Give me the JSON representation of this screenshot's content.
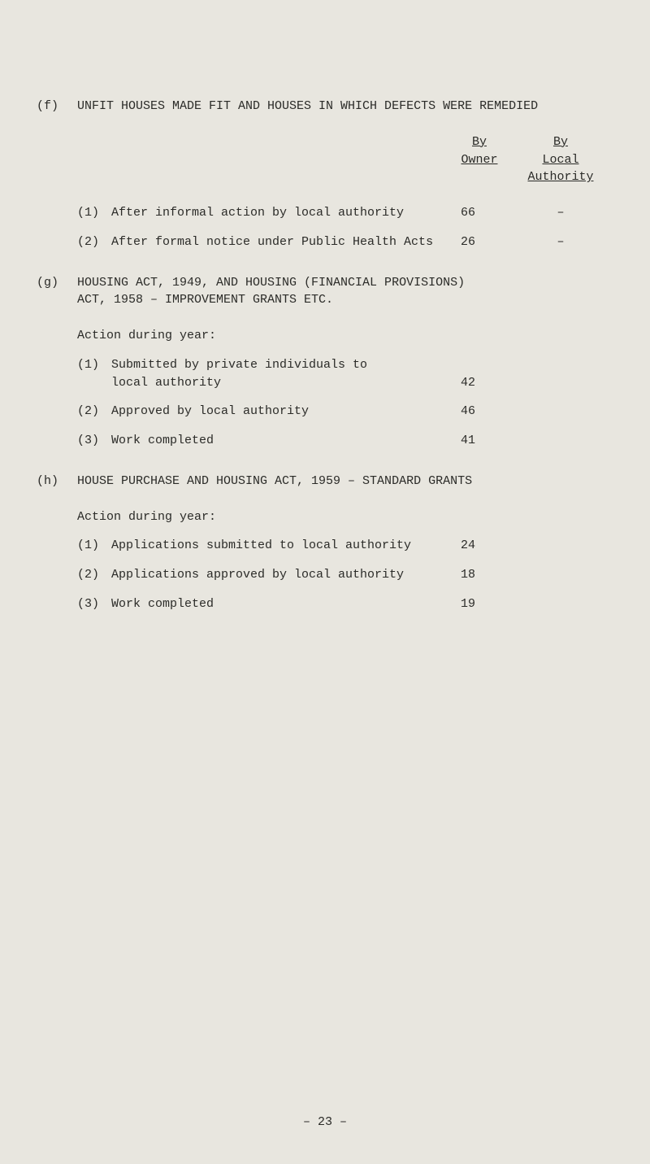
{
  "f": {
    "tag": "(f)",
    "title": "UNFIT HOUSES MADE FIT AND HOUSES IN WHICH DEFECTS WERE REMEDIED",
    "col1_line1": "By",
    "col1_line2": "Owner",
    "col2_line1": "By",
    "col2_line2": "Local",
    "col2_line3": "Authority",
    "rows": [
      {
        "num": "(1)",
        "desc": "After informal action by local authority",
        "v1": "66",
        "v2": "–"
      },
      {
        "num": "(2)",
        "desc": "After formal notice under Public Health Acts",
        "v1": "26",
        "v2": "–"
      }
    ]
  },
  "g": {
    "tag": "(g)",
    "title_l1": "HOUSING ACT, 1949, AND HOUSING (FINANCIAL PROVISIONS)",
    "title_l2": "ACT, 1958   –   IMPROVEMENT GRANTS ETC.",
    "action": "Action during year:",
    "rows": [
      {
        "num": "(1)",
        "desc_l1": "Submitted by private individuals to",
        "desc_l2": "local authority",
        "v1": "42"
      },
      {
        "num": "(2)",
        "desc_l1": "Approved by local authority",
        "v1": "46"
      },
      {
        "num": "(3)",
        "desc_l1": "Work completed",
        "v1": "41"
      }
    ]
  },
  "h": {
    "tag": "(h)",
    "title": "HOUSE PURCHASE AND HOUSING ACT, 1959  –  STANDARD GRANTS",
    "action": "Action during year:",
    "rows": [
      {
        "num": "(1)",
        "desc": "Applications submitted to local authority",
        "v1": "24"
      },
      {
        "num": "(2)",
        "desc": "Applications approved by local authority",
        "v1": "18"
      },
      {
        "num": "(3)",
        "desc": "Work completed",
        "v1": "19"
      }
    ]
  },
  "page_number": "–  23  –"
}
